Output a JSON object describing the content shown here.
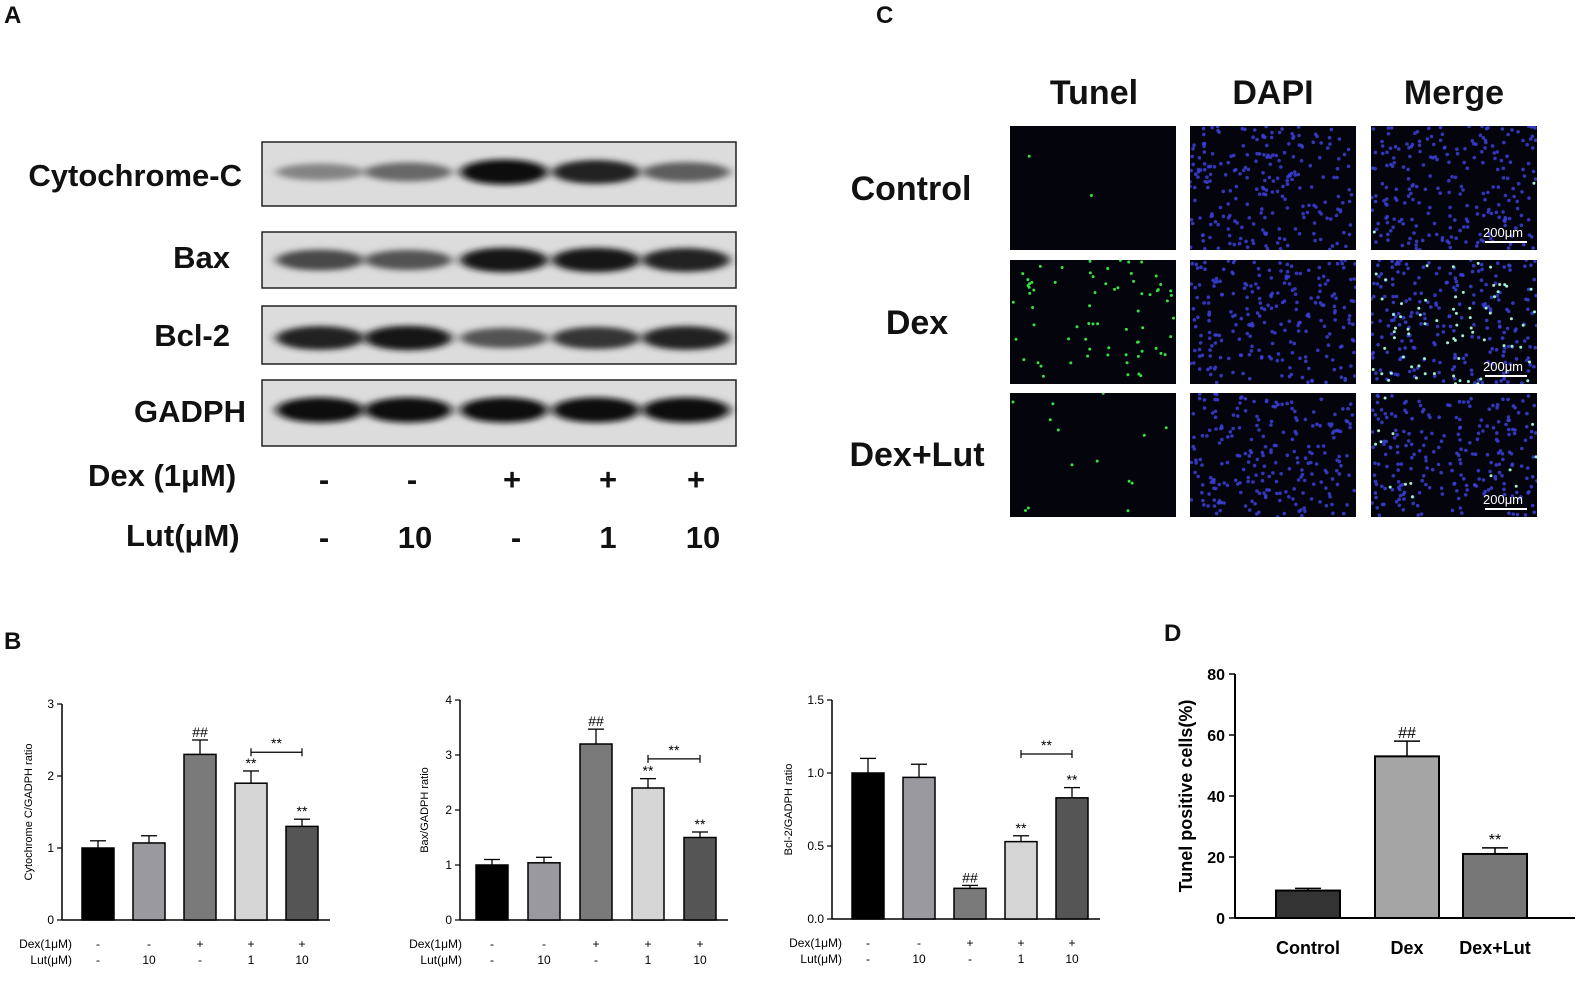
{
  "panels": {
    "a": "A",
    "b": "B",
    "c": "C",
    "d": "D"
  },
  "western": {
    "proteins": [
      "Cytochrome-C",
      "Bax",
      "Bcl-2",
      "GADPH"
    ],
    "dex_label": "Dex (1μM)",
    "lut_label": "Lut(μM)",
    "dex": [
      "-",
      "-",
      "+",
      "+",
      "+"
    ],
    "lut": [
      "-",
      "10",
      "-",
      "1",
      "10"
    ],
    "band_intensity": [
      [
        0.35,
        0.5,
        0.95,
        0.85,
        0.55
      ],
      [
        0.65,
        0.6,
        0.9,
        0.9,
        0.85
      ],
      [
        0.85,
        0.9,
        0.6,
        0.75,
        0.85
      ],
      [
        0.95,
        0.95,
        0.95,
        0.95,
        0.95
      ]
    ]
  },
  "tunel": {
    "columns": [
      "Tunel",
      "DAPI",
      "Merge"
    ],
    "rows": [
      "Control",
      "Dex",
      "Dex+Lut"
    ],
    "scale": "200μm"
  },
  "chart_data": [
    {
      "type": "bar",
      "ylabel": "Cytochrome C/GADPH ratio",
      "ylim": [
        0,
        3
      ],
      "ticks": [
        "0",
        "1",
        "2",
        "3"
      ],
      "values": [
        1.0,
        1.07,
        2.3,
        1.9,
        1.3
      ],
      "errors": [
        0.1,
        0.1,
        0.2,
        0.17,
        0.1
      ],
      "colors": [
        "#000000",
        "#9a9a9e",
        "#7a7a7a",
        "#d5d5d5",
        "#555555"
      ],
      "marks": [
        "",
        "",
        "##",
        "**",
        "**"
      ],
      "bracket": {
        "from": 3,
        "to": 4,
        "label": "**",
        "y": 2.33
      },
      "dex_label": "Dex(1μM)",
      "lut_label": "Lut(μM)",
      "dex": [
        "-",
        "-",
        "+",
        "+",
        "+"
      ],
      "lut": [
        "-",
        "10",
        "-",
        "1",
        "10"
      ]
    },
    {
      "type": "bar",
      "ylabel": "Bax/GADPH ratio",
      "ylim": [
        0,
        4
      ],
      "ticks": [
        "0",
        "1",
        "2",
        "3",
        "4"
      ],
      "values": [
        1.0,
        1.04,
        3.2,
        2.4,
        1.5
      ],
      "errors": [
        0.1,
        0.1,
        0.27,
        0.17,
        0.1
      ],
      "colors": [
        "#000000",
        "#9a9a9e",
        "#7a7a7a",
        "#d5d5d5",
        "#555555"
      ],
      "marks": [
        "",
        "",
        "##",
        "**",
        "**"
      ],
      "bracket": {
        "from": 3,
        "to": 4,
        "label": "**",
        "y": 2.93
      },
      "dex_label": "Dex(1μM)",
      "lut_label": "Lut(μM)",
      "dex": [
        "-",
        "-",
        "+",
        "+",
        "+"
      ],
      "lut": [
        "-",
        "10",
        "-",
        "1",
        "10"
      ]
    },
    {
      "type": "bar",
      "ylabel": "Bcl-2/GADPH ratio",
      "ylim": [
        0,
        1.5
      ],
      "ticks": [
        "0.0",
        "0.5",
        "1.0",
        "1.5"
      ],
      "values": [
        1.0,
        0.97,
        0.21,
        0.53,
        0.83
      ],
      "errors": [
        0.1,
        0.09,
        0.02,
        0.04,
        0.07
      ],
      "colors": [
        "#000000",
        "#9a9a9e",
        "#7a7a7a",
        "#d5d5d5",
        "#555555"
      ],
      "marks": [
        "",
        "",
        "##",
        "**",
        "**"
      ],
      "bracket": {
        "from": 3,
        "to": 4,
        "label": "**",
        "y": 1.13
      },
      "dex_label": "Dex(1μM)",
      "lut_label": "Lut(μM)",
      "dex": [
        "-",
        "-",
        "+",
        "+",
        "+"
      ],
      "lut": [
        "-",
        "10",
        "-",
        "1",
        "10"
      ]
    },
    {
      "type": "bar",
      "ylabel": "Tunel positive cells(%)",
      "ylim": [
        0,
        80
      ],
      "ticks": [
        "0",
        "20",
        "40",
        "60",
        "80"
      ],
      "categories": [
        "Control",
        "Dex",
        "Dex+Lut"
      ],
      "values": [
        9,
        53,
        21
      ],
      "errors": [
        0.7,
        5,
        2
      ],
      "colors": [
        "#333333",
        "#a5a5a5",
        "#777777"
      ],
      "marks": [
        "",
        "##",
        "**"
      ]
    }
  ]
}
